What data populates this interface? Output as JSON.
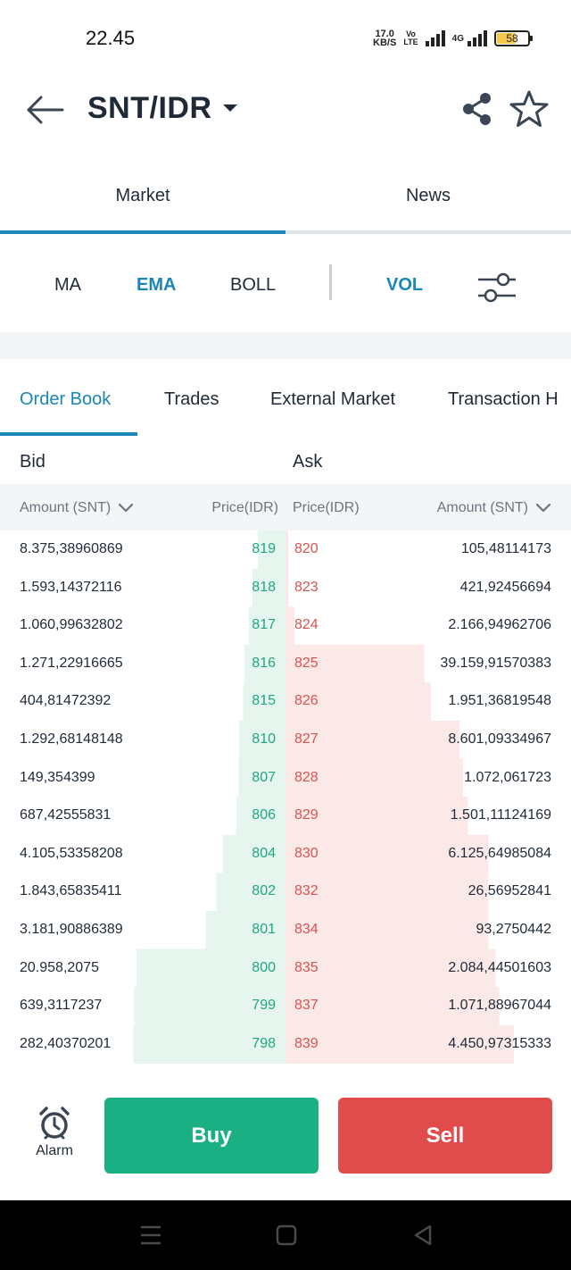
{
  "status_bar": {
    "time": "22.45",
    "net_speed_value": "17.0",
    "net_speed_unit": "KB/S",
    "volte_top": "Vo",
    "volte_bottom": "LTE",
    "network_type": "4G",
    "battery_level": "58"
  },
  "header": {
    "pair": "SNT/IDR"
  },
  "main_tabs": [
    {
      "label": "Market",
      "active": true
    },
    {
      "label": "News",
      "active": false
    }
  ],
  "indicators": {
    "items": [
      {
        "label": "MA",
        "active": false
      },
      {
        "label": "EMA",
        "active": true
      },
      {
        "label": "BOLL",
        "active": false
      },
      {
        "label": "VOL",
        "active": true
      }
    ]
  },
  "order_tabs": [
    {
      "label": "Order Book",
      "active": true
    },
    {
      "label": "Trades",
      "active": false
    },
    {
      "label": "External Market",
      "active": false
    },
    {
      "label": "Transaction H",
      "active": false
    }
  ],
  "book": {
    "bid_label": "Bid",
    "ask_label": "Ask",
    "columns": {
      "bid_amount": "Amount (SNT)",
      "bid_price": "Price(IDR)",
      "ask_price": "Price(IDR)",
      "ask_amount": "Amount (SNT)"
    },
    "rows": [
      {
        "bid_amount": "8.375,38960869",
        "bid_price": "819",
        "ask_price": "820",
        "ask_amount": "105,48114173"
      },
      {
        "bid_amount": "1.593,14372116",
        "bid_price": "818",
        "ask_price": "823",
        "ask_amount": "421,92456694"
      },
      {
        "bid_amount": "1.060,99632802",
        "bid_price": "817",
        "ask_price": "824",
        "ask_amount": "2.166,94962706"
      },
      {
        "bid_amount": "1.271,22916665",
        "bid_price": "816",
        "ask_price": "825",
        "ask_amount": "39.159,91570383"
      },
      {
        "bid_amount": "404,81472392",
        "bid_price": "815",
        "ask_price": "826",
        "ask_amount": "1.951,36819548"
      },
      {
        "bid_amount": "1.292,68148148",
        "bid_price": "810",
        "ask_price": "827",
        "ask_amount": "8.601,09334967"
      },
      {
        "bid_amount": "149,354399",
        "bid_price": "807",
        "ask_price": "828",
        "ask_amount": "1.072,061723"
      },
      {
        "bid_amount": "687,42555831",
        "bid_price": "806",
        "ask_price": "829",
        "ask_amount": "1.501,11124169"
      },
      {
        "bid_amount": "4.105,53358208",
        "bid_price": "804",
        "ask_price": "830",
        "ask_amount": "6.125,64985084"
      },
      {
        "bid_amount": "1.843,65835411",
        "bid_price": "802",
        "ask_price": "832",
        "ask_amount": "26,56952841"
      },
      {
        "bid_amount": "3.181,90886389",
        "bid_price": "801",
        "ask_price": "834",
        "ask_amount": "93,2750442"
      },
      {
        "bid_amount": "20.958,2075",
        "bid_price": "800",
        "ask_price": "835",
        "ask_amount": "2.084,44501603"
      },
      {
        "bid_amount": "639,3117237",
        "bid_price": "799",
        "ask_price": "837",
        "ask_amount": "1.071,88967044"
      },
      {
        "bid_amount": "282,40370201",
        "bid_price": "798",
        "ask_price": "839",
        "ask_amount": "4.450,97315333"
      }
    ]
  },
  "actions": {
    "alarm_label": "Alarm",
    "buy_label": "Buy",
    "sell_label": "Sell"
  },
  "colors": {
    "accent": "#1b86b8",
    "bid": "#1fa87c",
    "ask": "#d9534f",
    "buy_button": "#1bb084",
    "sell_button": "#e04b4b",
    "bid_depth": "#e6f6ef",
    "ask_depth": "#fbe9e8"
  }
}
